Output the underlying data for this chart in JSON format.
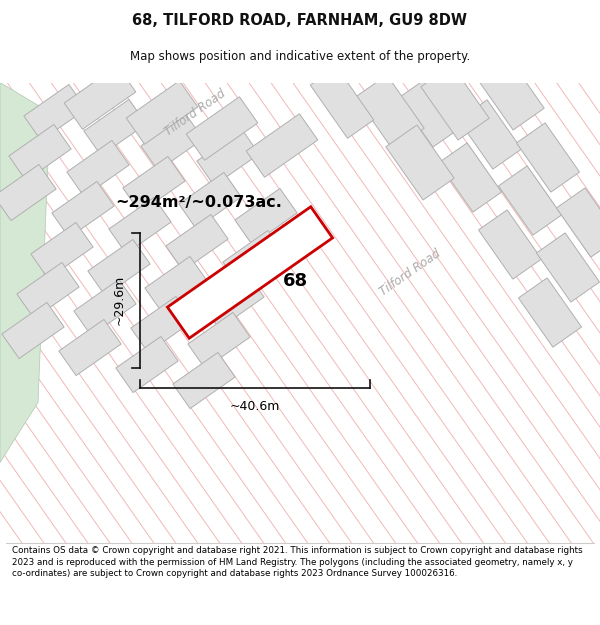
{
  "title": "68, TILFORD ROAD, FARNHAM, GU9 8DW",
  "subtitle": "Map shows position and indicative extent of the property.",
  "area_text": "~294m²/~0.073ac.",
  "property_number": "68",
  "dim_width": "~40.6m",
  "dim_height": "~29.6m",
  "road_label": "Tilford Road",
  "footer": "Contains OS data © Crown copyright and database right 2021. This information is subject to Crown copyright and database rights 2023 and is reproduced with the permission of HM Land Registry. The polygons (including the associated geometry, namely x, y co-ordinates) are subject to Crown copyright and database rights 2023 Ordnance Survey 100026316.",
  "hatch_color": "#f2b8b8",
  "hatch_bg": "#ffffff",
  "building_fill": "#e0e0e0",
  "building_edge": "#b0b0b0",
  "road_label_color": "#aaaaaa",
  "property_edge": "#cc0000",
  "property_fill": "#ffffff",
  "green_fill": "#d4e8d4",
  "green_edge": "#b0c8b0",
  "dim_color": "#111111",
  "text_color": "#111111"
}
